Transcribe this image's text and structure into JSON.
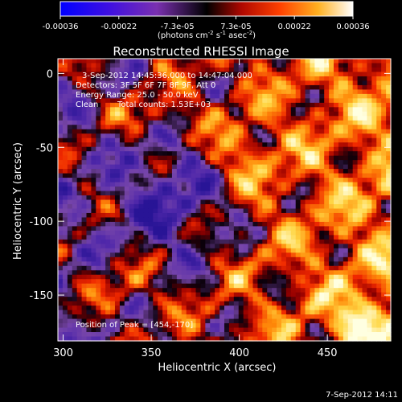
{
  "colorbar": {
    "ticks": [
      "-0.00036",
      "-0.00022",
      "-7.3e-05",
      "7.3e-05",
      "0.00022",
      "0.00036"
    ],
    "unit_main": "(photons cm",
    "unit_sup1": "-2",
    "unit_mid": " s",
    "unit_sup2": "-1",
    "unit_mid2": " asec",
    "unit_sup3": "-2",
    "unit_end": ")",
    "range": [
      -0.00036,
      0.00036
    ]
  },
  "annotations": {
    "time": "3-Sep-2012 14:45:36.000 to 14:47:04.000",
    "detectors": "Detectors: 3F 5F 6F 7F 8F 9F, Att 0",
    "energy": "Energy Range: 25.0 - 50.0 keV",
    "clean": "Clean",
    "counts": "Total counts: 1.53E+03",
    "peak": "Position of Peak = [454,-170]"
  },
  "footer_timestamp": "7-Sep-2012 14:11",
  "chart_data": {
    "type": "heatmap",
    "title": "Reconstructed RHESSI Image",
    "xlabel": "Heliocentric X (arcsec)",
    "ylabel": "Heliocentric Y (arcsec)",
    "xlim": [
      297,
      486
    ],
    "ylim": [
      -181,
      10
    ],
    "xticks": [
      300,
      350,
      400,
      450
    ],
    "yticks": [
      0,
      -50,
      -100,
      -150
    ],
    "peak": [
      454,
      -170
    ],
    "colormap": [
      "#0000ff",
      "#5a20c8",
      "#7a40a0",
      "#000000",
      "#c81000",
      "#ff6a00",
      "#ffd040",
      "#ffffe0"
    ]
  }
}
